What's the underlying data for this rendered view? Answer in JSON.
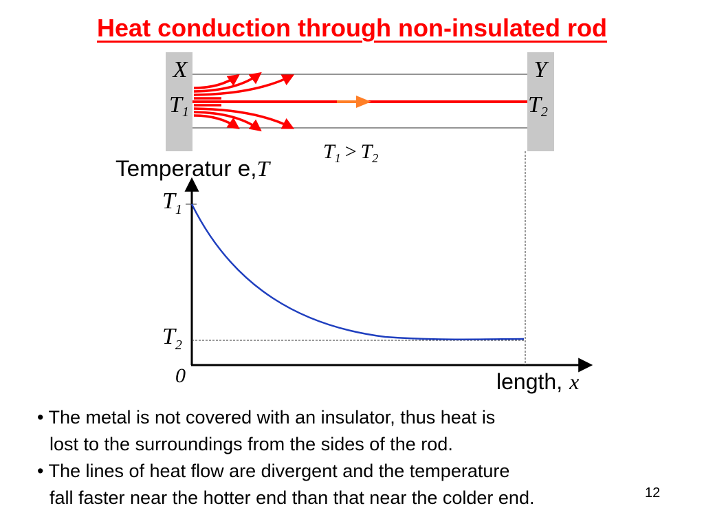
{
  "title": "Heat conduction through non-insulated rod",
  "rod": {
    "end_left": "X",
    "end_right": "Y",
    "temp_left_base": "T",
    "temp_left_sub": "1",
    "temp_right_base": "T",
    "temp_right_sub": "2",
    "relation": {
      "left_base": "T",
      "left_sub": "1",
      "operator": ">",
      "right_base": "T",
      "right_sub": "2"
    }
  },
  "graph": {
    "ylabel_text": "Temperatur e,",
    "ylabel_symbol": "T",
    "xlabel_text": "length,",
    "xlabel_symbol": "x",
    "origin_label": "0",
    "ytick_top_base": "T",
    "ytick_top_sub": "1",
    "ytick_bottom_base": "T",
    "ytick_bottom_sub": "2",
    "curve": "exponential decay from T1 at x = 0, levelling off to T2 at the end of the rod"
  },
  "bullets": [
    {
      "line1": "• The metal is not covered with an insulator, thus heat is",
      "line2": "lost to the surroundings from the sides of the rod."
    },
    {
      "line1": "• The lines of heat flow are divergent and the temperature",
      "line2": "fall faster near the hotter end than that near the colder end."
    }
  ],
  "slide_number": "12",
  "colors": {
    "title": "#ff0000",
    "heat_arrows": "#ff0000",
    "centre_arrow": "#ff7f27",
    "curve": "#1f3fbf",
    "rod_ends": "#c8c8c8"
  }
}
